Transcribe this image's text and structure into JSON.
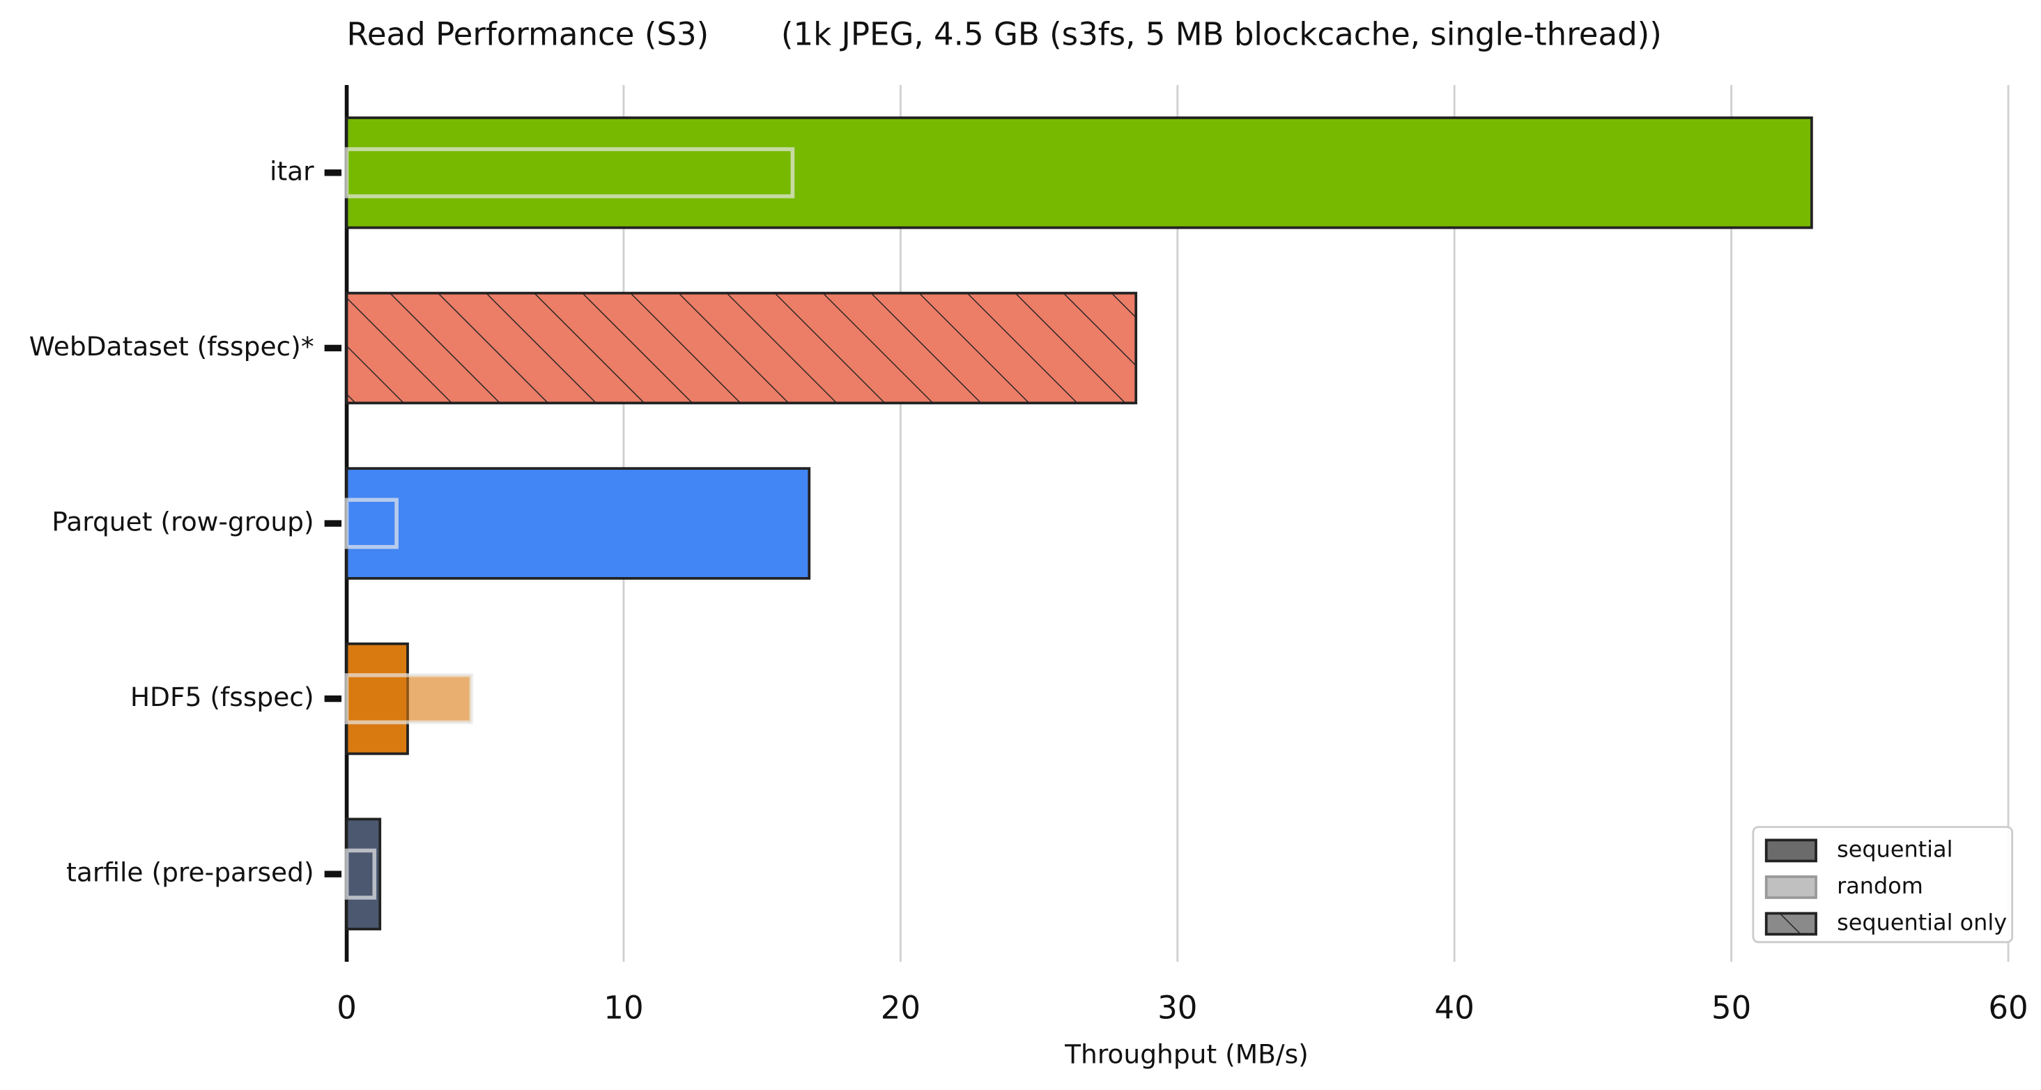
{
  "chart_data": {
    "type": "bar",
    "orientation": "horizontal",
    "title": "Read Performance (S3)",
    "subtitle": "(1k JPEG, 4.5 GB (s3fs, 5 MB blockcache, single-thread))",
    "x_label": "Throughput (MB/s)",
    "categories": [
      "itar",
      "WebDataset (fsspec)*",
      "Parquet (row-group)",
      "HDF5 (fsspec)",
      "tarfile (pre-parsed)"
    ],
    "category_colors": [
      "#77b900",
      "#ec7d66",
      "#4285f4",
      "#d97a10",
      "#4c5870"
    ],
    "series": [
      {
        "name": "sequential",
        "color": "#6b6b6b",
        "values": [
          52.9,
          null,
          16.7,
          2.2,
          1.2
        ]
      },
      {
        "name": "random",
        "color": "#b0b0b0",
        "values": [
          16.1,
          null,
          1.8,
          4.5,
          1.0
        ]
      },
      {
        "name": "sequential only",
        "color": "#8a8a8a",
        "hatch": true,
        "values": [
          null,
          28.5,
          null,
          null,
          null
        ]
      }
    ],
    "xlim": [
      0,
      60
    ],
    "xticks": [
      0,
      10,
      20,
      30,
      40,
      50,
      60
    ],
    "grid": true,
    "legend": "lower right"
  }
}
